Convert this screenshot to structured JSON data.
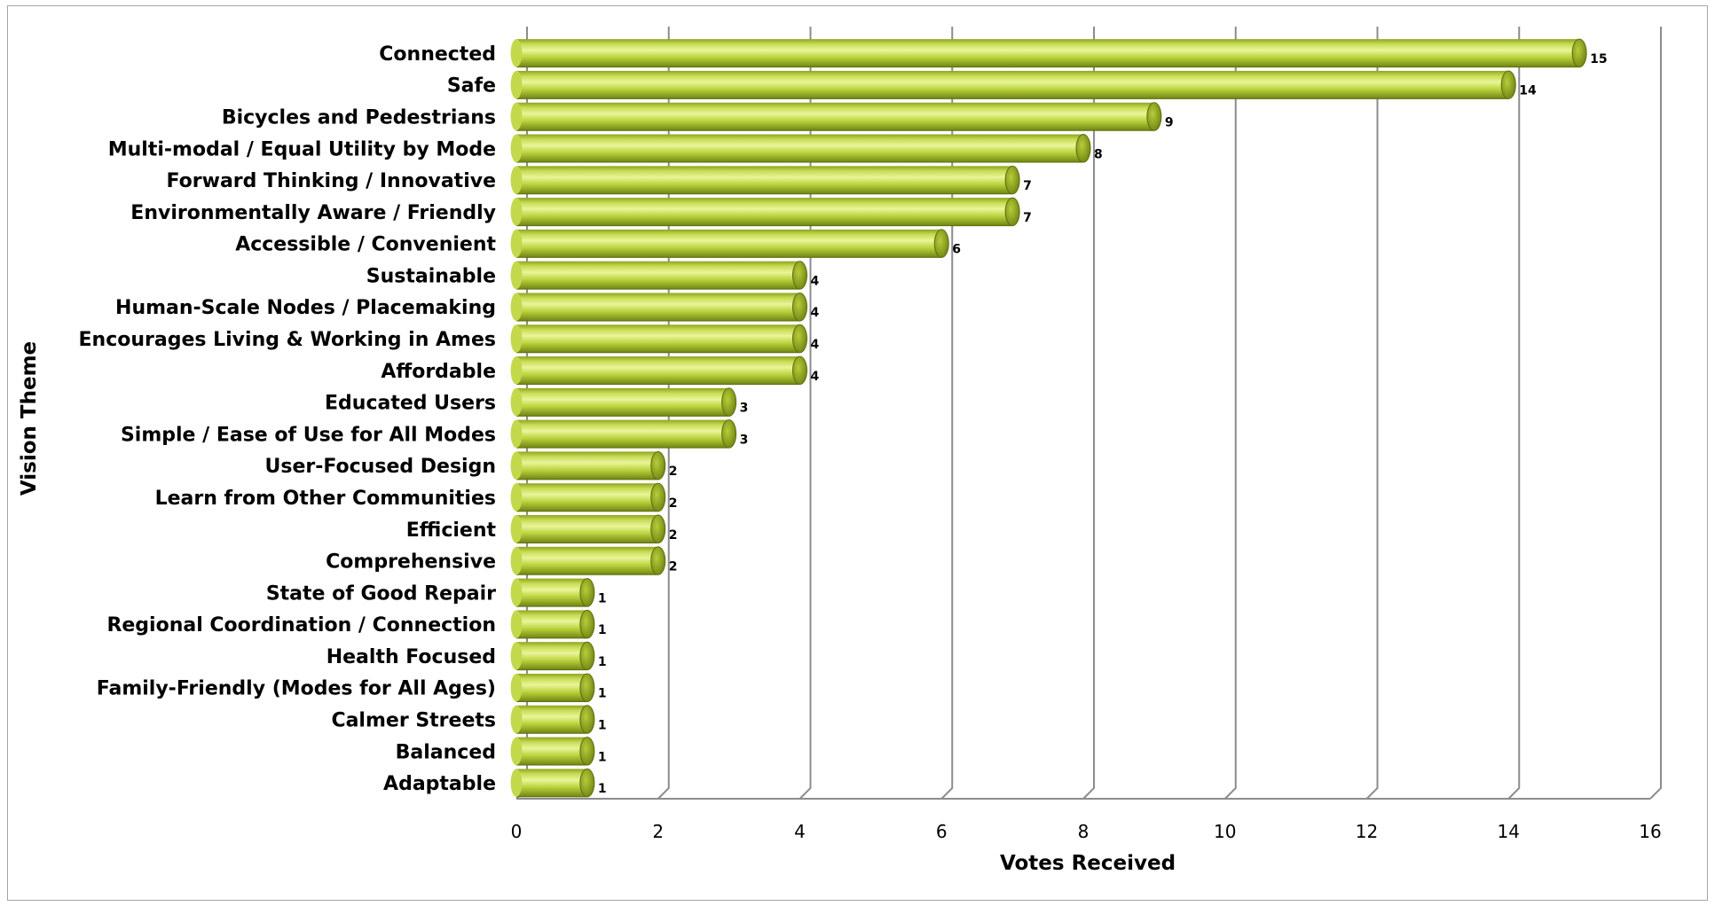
{
  "chart_data": {
    "type": "bar",
    "orientation": "horizontal",
    "title": "",
    "xlabel": "Votes Received",
    "ylabel": "Vision Theme",
    "xlim": [
      0,
      16
    ],
    "xticks": [
      0,
      2,
      4,
      6,
      8,
      10,
      12,
      14,
      16
    ],
    "grid": true,
    "legend": "none",
    "bar_color": "#a9c22e",
    "bar_highlight": "#e9f59a",
    "bar_shadow": "#6f8412",
    "categories": [
      "Connected",
      "Safe",
      "Bicycles and Pedestrians",
      "Multi-modal / Equal Utility by Mode",
      "Forward Thinking / Innovative",
      "Environmentally Aware / Friendly",
      "Accessible / Convenient",
      "Sustainable",
      "Human-Scale Nodes / Placemaking",
      "Encourages Living & Working in Ames",
      "Affordable",
      "Educated Users",
      "Simple / Ease of Use for All Modes",
      "User-Focused Design",
      "Learn from Other Communities",
      "Efficient",
      "Comprehensive",
      "State of Good Repair",
      "Regional Coordination / Connection",
      "Health Focused",
      "Family-Friendly (Modes for All Ages)",
      "Calmer Streets",
      "Balanced",
      "Adaptable"
    ],
    "values": [
      15,
      14,
      9,
      8,
      7,
      7,
      6,
      4,
      4,
      4,
      4,
      3,
      3,
      2,
      2,
      2,
      2,
      1,
      1,
      1,
      1,
      1,
      1,
      1
    ]
  }
}
